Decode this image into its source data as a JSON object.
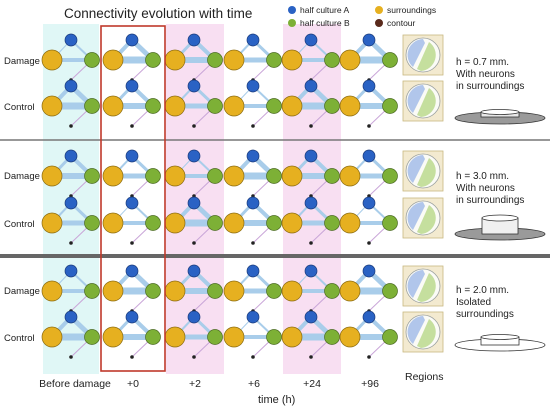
{
  "title": "Connectivity evolution with time",
  "legend": [
    {
      "label": "half culture A",
      "color": "#2a62c4"
    },
    {
      "label": "half culture B",
      "color": "#7db036"
    },
    {
      "label": "surroundings",
      "color": "#e6b020"
    },
    {
      "label": "contour",
      "color": "#5a2a1c"
    }
  ],
  "rows": [
    {
      "label": "Damage"
    },
    {
      "label": "Control"
    },
    {
      "label": "Damage"
    },
    {
      "label": "Control"
    },
    {
      "label": "Damage"
    },
    {
      "label": "Control"
    }
  ],
  "columns": [
    {
      "label": "Before damage",
      "shade": "cyan"
    },
    {
      "label": "+0",
      "shade": "none",
      "highlight": true
    },
    {
      "label": "+2",
      "shade": "pink"
    },
    {
      "label": "+6",
      "shade": "none"
    },
    {
      "label": "+24",
      "shade": "pink"
    },
    {
      "label": "+96",
      "shade": "none"
    }
  ],
  "xlabel": "time (h)",
  "regions_label": "Regions",
  "sections": [
    {
      "h": "h = 0.7 mm.",
      "line2": "With neurons",
      "line3": "in surroundings"
    },
    {
      "h": "h = 3.0 mm.",
      "line2": "With neurons",
      "line3": "in surroundings"
    },
    {
      "h": "h = 2.0 mm.",
      "line2": "Isolated",
      "line3": "surroundings"
    }
  ],
  "colors": {
    "cyan_shade": "#e0f7f6",
    "pink_shade": "#f8dff2",
    "highlight_border": "#c0392b",
    "link": "#a9cdea",
    "separator": "#777777",
    "node_a": "#2a62c4",
    "node_b": "#7db036",
    "node_s": "#e6b020",
    "node_c": "#222222"
  }
}
